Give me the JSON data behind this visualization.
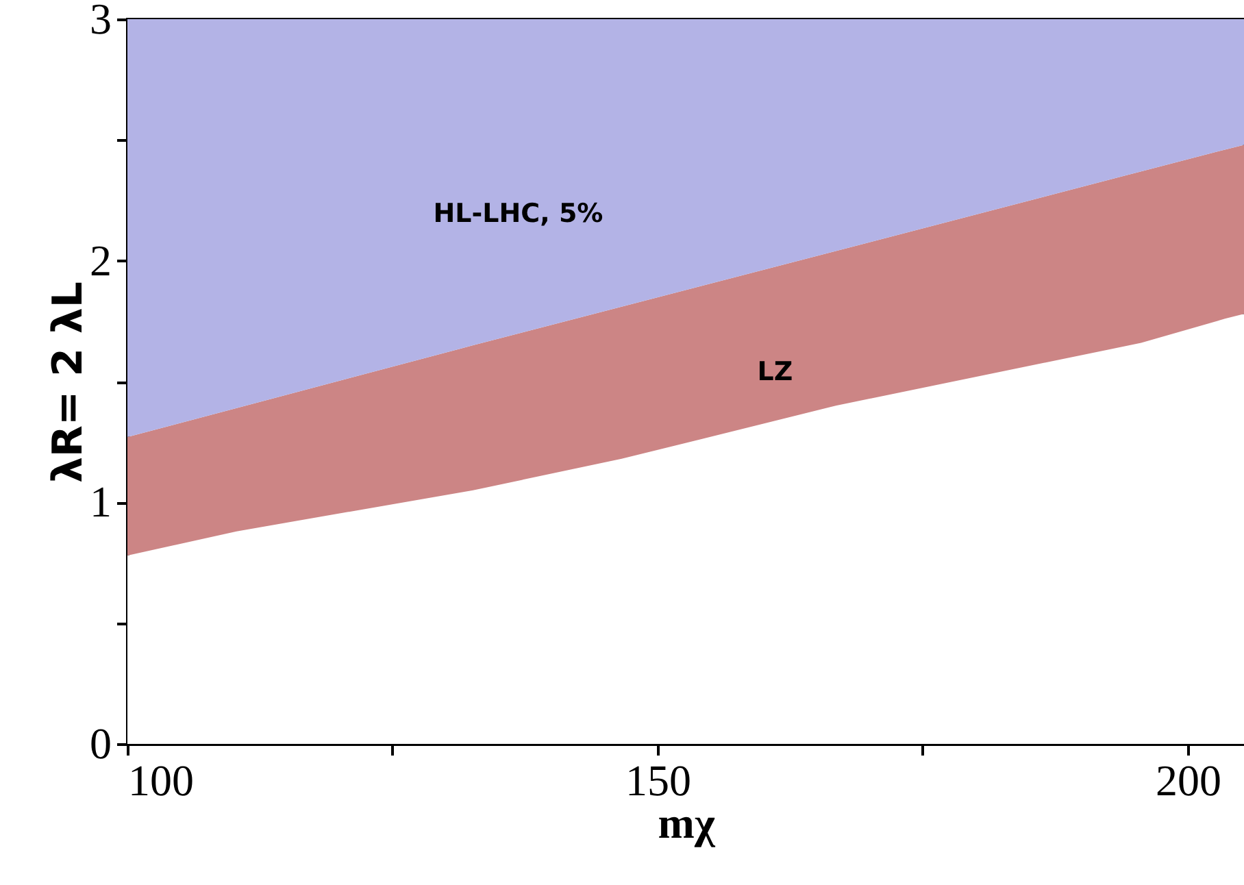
{
  "chart_data": {
    "type": "area",
    "stacked": true,
    "xlabel": "mχ",
    "ylabel": "λR= 2 λL",
    "xlim": [
      100,
      205.3
    ],
    "ylim": [
      0,
      3
    ],
    "xticks": [
      100,
      {
        "value": 125,
        "label": null
      },
      150,
      {
        "value": 175,
        "label": null
      },
      200
    ],
    "yticks": [
      0,
      {
        "value": 0.5,
        "label": null
      },
      1,
      {
        "value": 1.5,
        "label": null
      },
      2,
      {
        "value": 2.5,
        "label": null
      },
      3
    ],
    "grid": false,
    "x": [
      100,
      110.3,
      132.6,
      146.6,
      166.8,
      195.6,
      203.5,
      205.3
    ],
    "series": [
      {
        "color": "#ffffff",
        "values": [
          0.78,
          0.88,
          1.05,
          1.18,
          1.4,
          1.66,
          1.76,
          1.78
        ]
      },
      {
        "name": "LZ",
        "color": "#cc8585",
        "values": [
          0.49,
          0.51,
          0.6,
          0.63,
          0.64,
          0.71,
          0.7,
          0.7
        ]
      },
      {
        "name": "HL-LHC, 5%",
        "color": "#b3b3e6",
        "values": [
          1.73,
          1.61,
          1.36,
          1.2,
          0.96,
          0.63,
          0.54,
          0.52
        ]
      }
    ]
  }
}
